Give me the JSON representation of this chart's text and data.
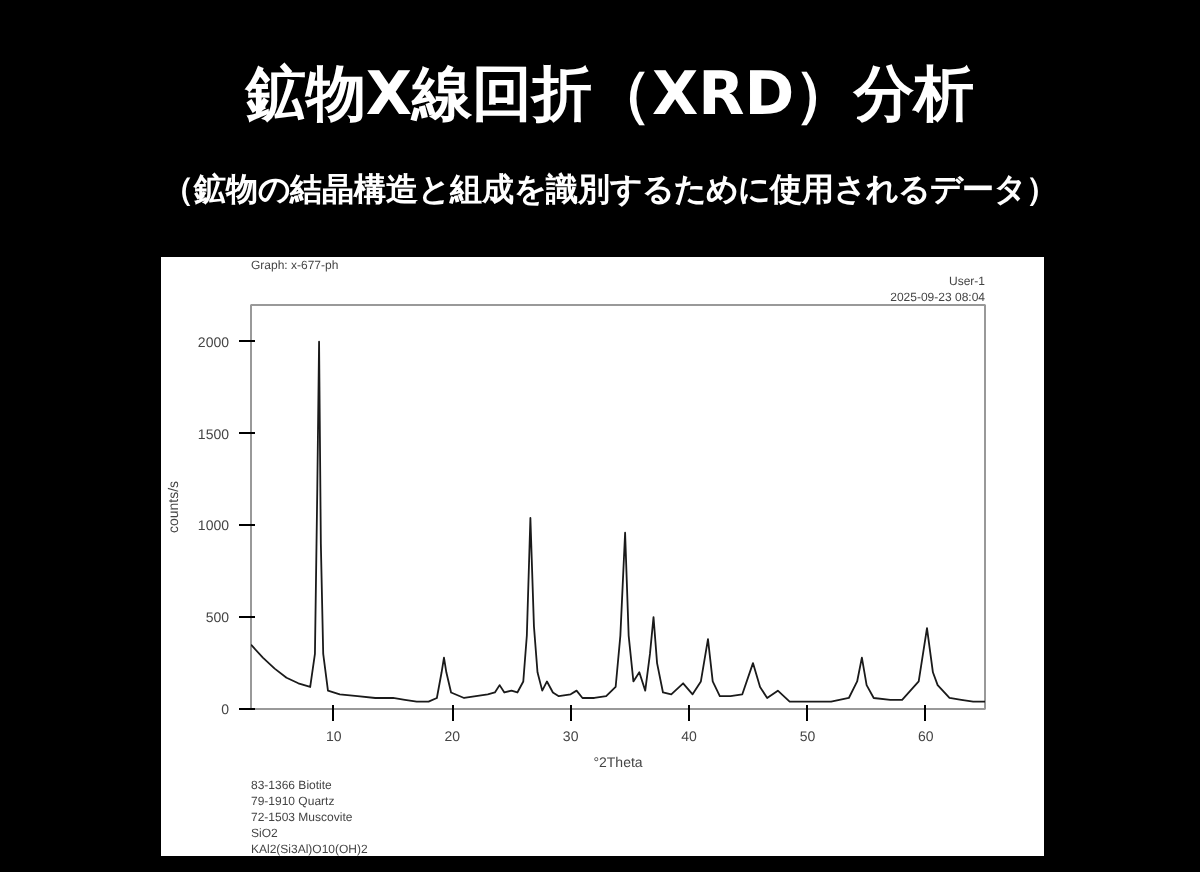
{
  "chart_data": {
    "type": "line",
    "title": "鉱物X線回折（XRD）分析",
    "subtitle": "（鉱物の結晶構造と組成を識別するために使用されるデータ）",
    "xlabel": "°2Theta",
    "ylabel": "counts/s",
    "annotations": [
      "Graph: x-677-ph",
      "User-1",
      "2025-09-23 08:04",
      "83-1366 Biotite",
      "79-1910 Quartz",
      "72-1503 Muscovite",
      "SiO2",
      "KAl2(Si3Al)O10(OH)2"
    ],
    "series": [
      {
        "color": "#1a1a1a",
        "x": [
          3,
          4,
          5,
          6,
          7,
          8,
          8.4,
          8.6,
          8.75,
          8.9,
          9.1,
          9.5,
          10.5,
          12,
          13.5,
          15,
          16,
          17,
          18,
          18.7,
          19.1,
          19.3,
          19.5,
          19.9,
          21,
          22,
          23,
          23.6,
          24,
          24.4,
          25,
          25.5,
          26,
          26.3,
          26.6,
          26.9,
          27.2,
          27.6,
          28,
          28.5,
          29,
          30,
          30.5,
          31,
          32,
          33,
          33.8,
          34.2,
          34.6,
          34.9,
          35.3,
          35.8,
          36.3,
          36.7,
          37,
          37.3,
          37.8,
          38.5,
          39.5,
          40.3,
          41,
          41.6,
          42,
          42.6,
          43.5,
          44.5,
          45.4,
          46,
          46.6,
          47.5,
          48.5,
          50,
          52,
          53.5,
          54.2,
          54.6,
          55,
          55.6,
          57,
          58,
          59.4,
          60.1,
          60.6,
          61,
          62,
          63,
          64,
          65
        ],
        "values": [
          350,
          280,
          220,
          170,
          140,
          120,
          300,
          1200,
          2000,
          900,
          300,
          100,
          80,
          70,
          60,
          60,
          50,
          40,
          40,
          60,
          200,
          280,
          200,
          90,
          60,
          70,
          80,
          90,
          130,
          90,
          100,
          90,
          150,
          400,
          1040,
          450,
          200,
          100,
          150,
          90,
          70,
          80,
          100,
          60,
          60,
          70,
          120,
          400,
          960,
          400,
          150,
          200,
          100,
          300,
          500,
          250,
          90,
          80,
          140,
          80,
          150,
          380,
          150,
          70,
          70,
          80,
          250,
          120,
          60,
          100,
          40,
          40,
          40,
          60,
          150,
          280,
          130,
          60,
          50,
          50,
          150,
          440,
          200,
          130,
          60,
          50,
          40,
          40
        ]
      }
    ],
    "xlim": [
      3,
      65
    ],
    "ylim": [
      0,
      2200
    ],
    "xticks": [
      10,
      20,
      30,
      40,
      50,
      60
    ],
    "yticks": [
      0,
      500,
      1000,
      1500,
      2000
    ],
    "grid": false,
    "marker": "none",
    "line_style": "solid"
  }
}
